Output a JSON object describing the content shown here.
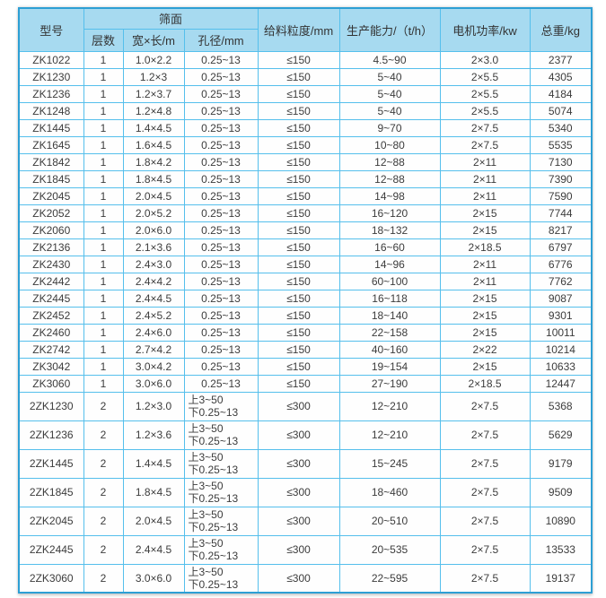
{
  "colors": {
    "border_outer": "#2d9fd4",
    "border_inner": "#55bfec",
    "header_bg": "#a7daf0",
    "text": "#3c3c3c"
  },
  "table": {
    "header": {
      "model": "型号",
      "screen_group": "筛面",
      "layers": "层数",
      "size": "宽×长/m",
      "aperture": "孔径/mm",
      "feed_size": "给料粒度/mm",
      "capacity": "生产能力/（t/h）",
      "motor_power": "电机功率/kw",
      "total_weight": "总重/kg"
    },
    "rows": [
      {
        "model": "ZK1022",
        "layers": "1",
        "size": "1.0×2.2",
        "aperture": [
          "0.25~13"
        ],
        "feed": "≤150",
        "capacity": "4.5~90",
        "power": "2×3.0",
        "weight": "2377"
      },
      {
        "model": "ZK1230",
        "layers": "1",
        "size": "1.2×3",
        "aperture": [
          "0.25~13"
        ],
        "feed": "≤150",
        "capacity": "5~40",
        "power": "2×5.5",
        "weight": "4305"
      },
      {
        "model": "ZK1236",
        "layers": "1",
        "size": "1.2×3.7",
        "aperture": [
          "0.25~13"
        ],
        "feed": "≤150",
        "capacity": "5~40",
        "power": "2×5.5",
        "weight": "4184"
      },
      {
        "model": "ZK1248",
        "layers": "1",
        "size": "1.2×4.8",
        "aperture": [
          "0.25~13"
        ],
        "feed": "≤150",
        "capacity": "5~40",
        "power": "2×5.5",
        "weight": "5074"
      },
      {
        "model": "ZK1445",
        "layers": "1",
        "size": "1.4×4.5",
        "aperture": [
          "0.25~13"
        ],
        "feed": "≤150",
        "capacity": "9~70",
        "power": "2×7.5",
        "weight": "5340"
      },
      {
        "model": "ZK1645",
        "layers": "1",
        "size": "1.6×4.5",
        "aperture": [
          "0.25~13"
        ],
        "feed": "≤150",
        "capacity": "10~80",
        "power": "2×7.5",
        "weight": "5535"
      },
      {
        "model": "ZK1842",
        "layers": "1",
        "size": "1.8×4.2",
        "aperture": [
          "0.25~13"
        ],
        "feed": "≤150",
        "capacity": "12~88",
        "power": "2×11",
        "weight": "7130"
      },
      {
        "model": "ZK1845",
        "layers": "1",
        "size": "1.8×4.5",
        "aperture": [
          "0.25~13"
        ],
        "feed": "≤150",
        "capacity": "12~88",
        "power": "2×11",
        "weight": "7390"
      },
      {
        "model": "ZK2045",
        "layers": "1",
        "size": "2.0×4.5",
        "aperture": [
          "0.25~13"
        ],
        "feed": "≤150",
        "capacity": "14~98",
        "power": "2×11",
        "weight": "7590"
      },
      {
        "model": "ZK2052",
        "layers": "1",
        "size": "2.0×5.2",
        "aperture": [
          "0.25~13"
        ],
        "feed": "≤150",
        "capacity": "16~120",
        "power": "2×15",
        "weight": "7744"
      },
      {
        "model": "ZK2060",
        "layers": "1",
        "size": "2.0×6.0",
        "aperture": [
          "0.25~13"
        ],
        "feed": "≤150",
        "capacity": "18~132",
        "power": "2×15",
        "weight": "8217"
      },
      {
        "model": "ZK2136",
        "layers": "1",
        "size": "2.1×3.6",
        "aperture": [
          "0.25~13"
        ],
        "feed": "≤150",
        "capacity": "16~60",
        "power": "2×18.5",
        "weight": "6797"
      },
      {
        "model": "ZK2430",
        "layers": "1",
        "size": "2.4×3.0",
        "aperture": [
          "0.25~13"
        ],
        "feed": "≤150",
        "capacity": "14~96",
        "power": "2×11",
        "weight": "6776"
      },
      {
        "model": "ZK2442",
        "layers": "1",
        "size": "2.4×4.2",
        "aperture": [
          "0.25~13"
        ],
        "feed": "≤150",
        "capacity": "60~100",
        "power": "2×11",
        "weight": "7762"
      },
      {
        "model": "ZK2445",
        "layers": "1",
        "size": "2.4×4.5",
        "aperture": [
          "0.25~13"
        ],
        "feed": "≤150",
        "capacity": "16~118",
        "power": "2×15",
        "weight": "9087"
      },
      {
        "model": "ZK2452",
        "layers": "1",
        "size": "2.4×5.2",
        "aperture": [
          "0.25~13"
        ],
        "feed": "≤150",
        "capacity": "18~140",
        "power": "2×15",
        "weight": "9301"
      },
      {
        "model": "ZK2460",
        "layers": "1",
        "size": "2.4×6.0",
        "aperture": [
          "0.25~13"
        ],
        "feed": "≤150",
        "capacity": "22~158",
        "power": "2×15",
        "weight": "10011"
      },
      {
        "model": "ZK2742",
        "layers": "1",
        "size": "2.7×4.2",
        "aperture": [
          "0.25~13"
        ],
        "feed": "≤150",
        "capacity": "40~160",
        "power": "2×22",
        "weight": "10214"
      },
      {
        "model": "ZK3042",
        "layers": "1",
        "size": "3.0×4.2",
        "aperture": [
          "0.25~13"
        ],
        "feed": "≤150",
        "capacity": "19~154",
        "power": "2×15",
        "weight": "10633"
      },
      {
        "model": "ZK3060",
        "layers": "1",
        "size": "3.0×6.0",
        "aperture": [
          "0.25~13"
        ],
        "feed": "≤150",
        "capacity": "27~190",
        "power": "2×18.5",
        "weight": "12447"
      },
      {
        "model": "2ZK1230",
        "layers": "2",
        "size": "1.2×3.0",
        "aperture": [
          "上3~50",
          "下0.25~13"
        ],
        "feed": "≤300",
        "capacity": "12~210",
        "power": "2×7.5",
        "weight": "5368"
      },
      {
        "model": "2ZK1236",
        "layers": "2",
        "size": "1.2×3.6",
        "aperture": [
          "上3~50",
          "下0.25~13"
        ],
        "feed": "≤300",
        "capacity": "12~210",
        "power": "2×7.5",
        "weight": "5629"
      },
      {
        "model": "2ZK1445",
        "layers": "2",
        "size": "1.4×4.5",
        "aperture": [
          "上3~50",
          "下0.25~13"
        ],
        "feed": "≤300",
        "capacity": "15~245",
        "power": "2×7.5",
        "weight": "9179"
      },
      {
        "model": "2ZK1845",
        "layers": "2",
        "size": "1.8×4.5",
        "aperture": [
          "上3~50",
          "下0.25~13"
        ],
        "feed": "≤300",
        "capacity": "18~460",
        "power": "2×7.5",
        "weight": "9509"
      },
      {
        "model": "2ZK2045",
        "layers": "2",
        "size": "2.0×4.5",
        "aperture": [
          "上3~50",
          "下0.25~13"
        ],
        "feed": "≤300",
        "capacity": "20~510",
        "power": "2×7.5",
        "weight": "10890"
      },
      {
        "model": "2ZK2445",
        "layers": "2",
        "size": "2.4×4.5",
        "aperture": [
          "上3~50",
          "下0.25~13"
        ],
        "feed": "≤300",
        "capacity": "20~535",
        "power": "2×7.5",
        "weight": "13533"
      },
      {
        "model": "2ZK3060",
        "layers": "2",
        "size": "3.0×6.0",
        "aperture": [
          "上3~50",
          "下0.25~13"
        ],
        "feed": "≤300",
        "capacity": "22~595",
        "power": "2×7.5",
        "weight": "19137"
      }
    ]
  }
}
